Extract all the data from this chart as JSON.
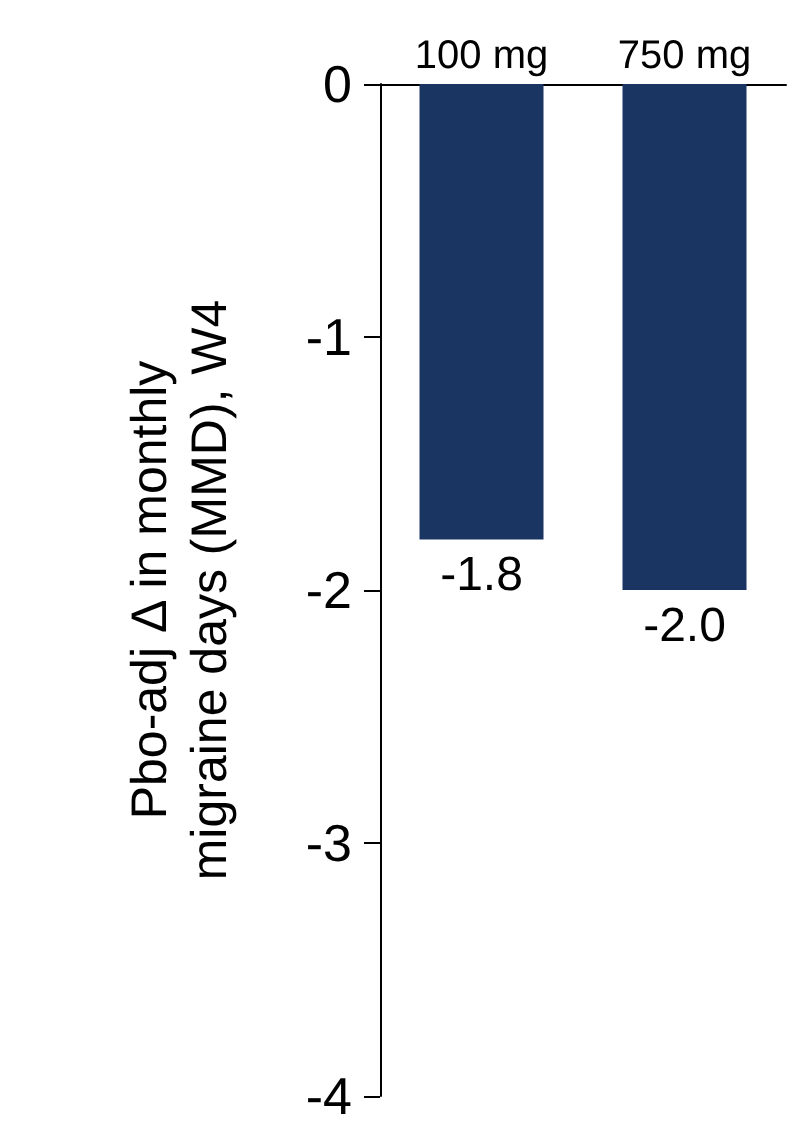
{
  "chart_data": {
    "type": "bar",
    "ylabel": "Pbo-adj Δ in monthly\nmigraine days (MMD), W4",
    "categories": [
      "100 mg",
      "750 mg"
    ],
    "series": [
      {
        "color": "#1b3563",
        "values": [
          -1.8,
          -2.0
        ],
        "value_labels": [
          "-1.8",
          "-2.0"
        ]
      }
    ],
    "ylim": [
      -4,
      0
    ],
    "yticks": [
      0,
      -1,
      -2,
      -3,
      -4
    ]
  }
}
